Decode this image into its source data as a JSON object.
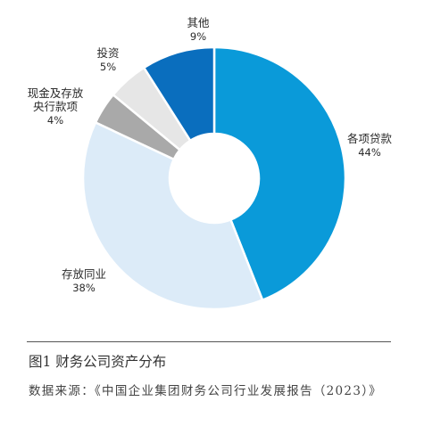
{
  "chart_data": {
    "type": "pie",
    "style": "donut",
    "slices": [
      {
        "label": [
          "各项贷款"
        ],
        "pct_label": "44%",
        "value": 44,
        "color": "#0a9ad9"
      },
      {
        "label": [
          "存放同业"
        ],
        "pct_label": "38%",
        "value": 38,
        "color": "#dcebf8"
      },
      {
        "label": [
          "现金及存放",
          "央行款项"
        ],
        "pct_label": "4%",
        "value": 4,
        "color": "#a9a9a9"
      },
      {
        "label": [
          "投资"
        ],
        "pct_label": "5%",
        "value": 5,
        "color": "#e6e6e6"
      },
      {
        "label": [
          "其他"
        ],
        "pct_label": "9%",
        "value": 9,
        "color": "#0a6ebe"
      }
    ]
  },
  "figure": {
    "title": "图1  财务公司资产分布",
    "source": "数据来源：《中国企业集团财务公司行业发展报告（2023）》"
  }
}
